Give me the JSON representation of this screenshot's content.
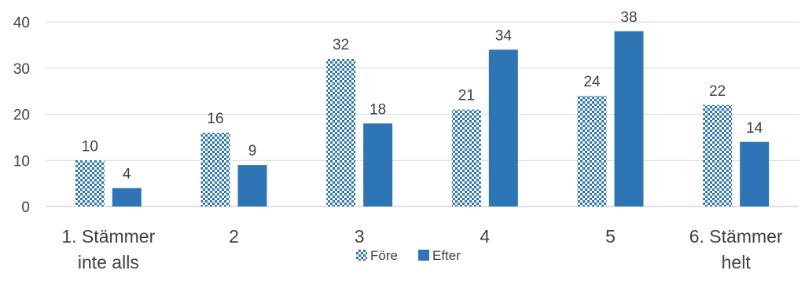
{
  "chart_data": {
    "type": "bar",
    "title": "",
    "xlabel": "",
    "ylabel": "",
    "ylim": [
      0,
      40
    ],
    "yticks": [
      0,
      10,
      20,
      30,
      40
    ],
    "grid": true,
    "legend_position": "bottom",
    "categories": [
      [
        "1. Stämmer",
        "inte alls"
      ],
      [
        "2"
      ],
      [
        "3"
      ],
      [
        "4"
      ],
      [
        "5"
      ],
      [
        "6. Stämmer",
        "helt"
      ]
    ],
    "series": [
      {
        "name": "Före",
        "values": [
          10,
          16,
          32,
          21,
          24,
          22
        ],
        "color": "#2e75b6",
        "pattern": "checkered"
      },
      {
        "name": "Efter",
        "values": [
          4,
          9,
          18,
          34,
          38,
          14
        ],
        "color": "#2e75b6",
        "pattern": "solid"
      }
    ]
  }
}
